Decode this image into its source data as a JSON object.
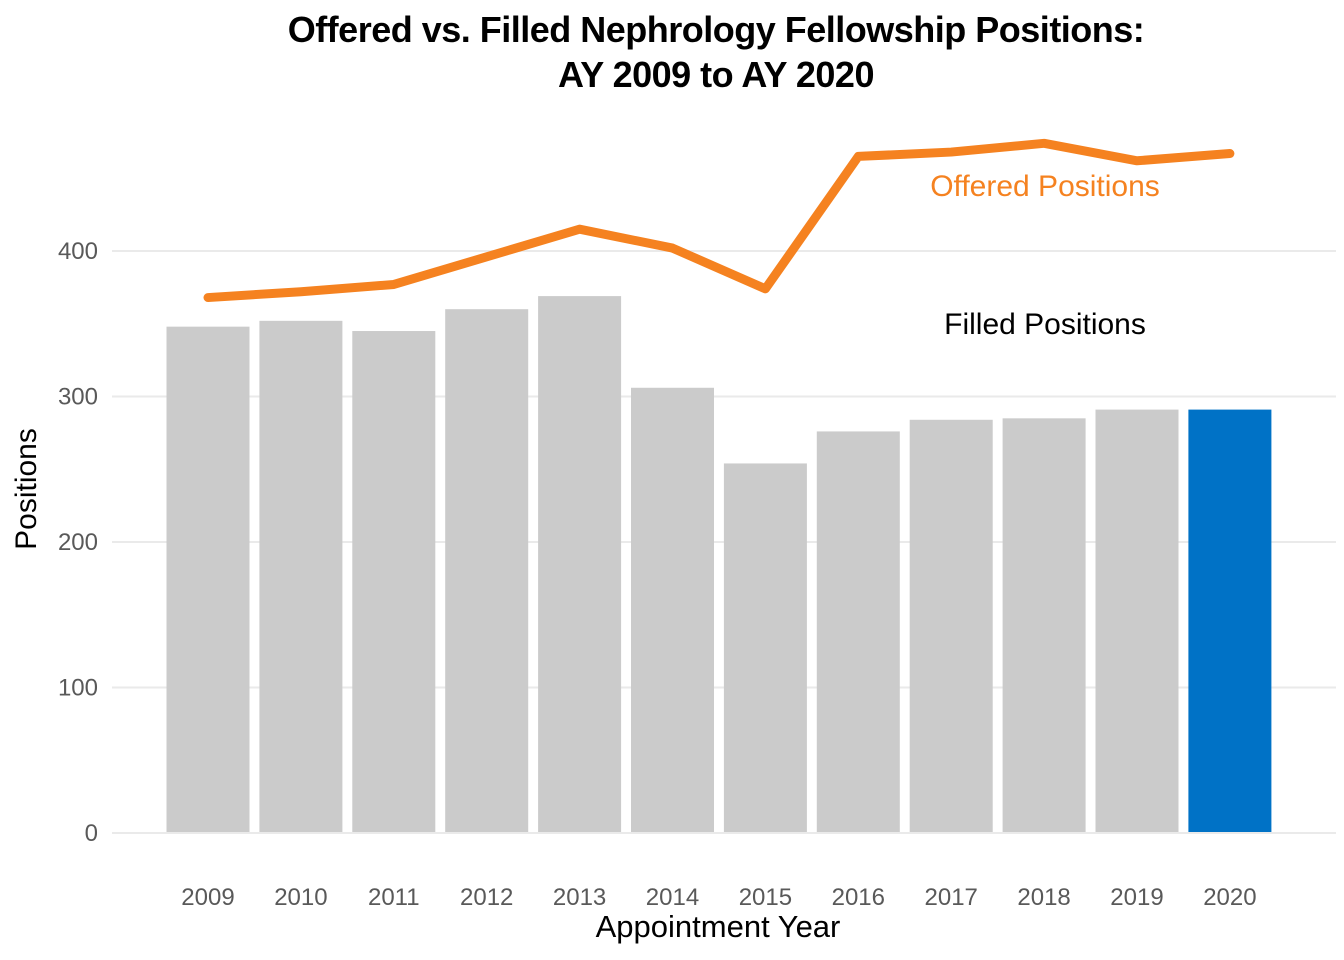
{
  "title": {
    "line1": "Offered vs. Filled Nephrology Fellowship Positions:",
    "line2": "AY 2009 to AY 2020"
  },
  "axes": {
    "x_label": "Appointment Year",
    "y_label": "Positions",
    "y_ticks": [
      0,
      100,
      200,
      300,
      400
    ]
  },
  "annotations": {
    "offered_label": "Offered Positions",
    "filled_label": "Filled Positions"
  },
  "colors": {
    "background": "#FFFFFF",
    "bar_default": "#CBCBCB",
    "bar_highlight": "#0072C6",
    "line": "#F58220",
    "gridline": "#EAEAEA",
    "tick_text": "#595959",
    "text": "#000000"
  },
  "chart_data": {
    "type": "bar",
    "title": "Offered vs. Filled Nephrology Fellowship Positions: AY 2009 to AY 2020",
    "xlabel": "Appointment Year",
    "ylabel": "Positions",
    "categories": [
      "2009",
      "2010",
      "2011",
      "2012",
      "2013",
      "2014",
      "2015",
      "2016",
      "2017",
      "2018",
      "2019",
      "2020"
    ],
    "series": [
      {
        "name": "Filled Positions",
        "type": "bar",
        "values": [
          348,
          352,
          345,
          360,
          369,
          306,
          254,
          276,
          284,
          285,
          291,
          291
        ],
        "highlight_category": "2020"
      },
      {
        "name": "Offered Positions",
        "type": "line",
        "values": [
          368,
          372,
          377,
          396,
          415,
          402,
          374,
          465,
          468,
          474,
          462,
          467
        ]
      }
    ],
    "ylim": [
      0,
      500
    ],
    "yticks": [
      0,
      100,
      200,
      300,
      400
    ],
    "grid": "horizontal",
    "legend": "inline-annotations"
  }
}
